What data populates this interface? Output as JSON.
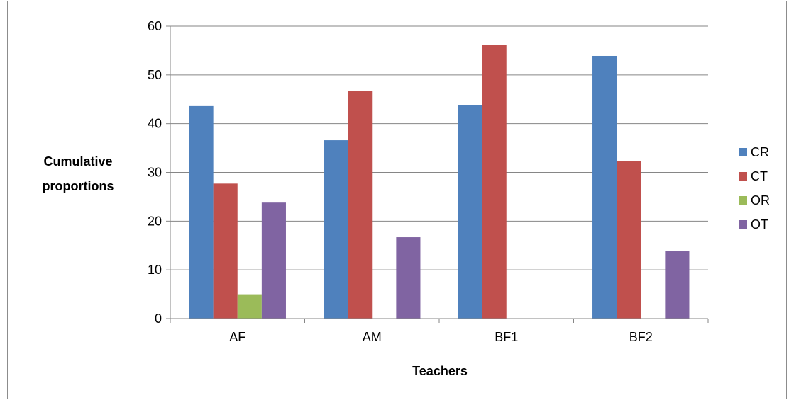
{
  "chart_data": {
    "type": "bar",
    "title": "",
    "xlabel": "Teachers",
    "ylabel_lines": [
      "Cumulative",
      "proportions"
    ],
    "categories": [
      "AF",
      "AM",
      "BF1",
      "BF2"
    ],
    "series": [
      {
        "name": "CR",
        "color": "#4f81bd",
        "values": [
          43.6,
          36.6,
          43.8,
          53.9
        ]
      },
      {
        "name": "CT",
        "color": "#c0504d",
        "values": [
          27.7,
          46.7,
          56.1,
          32.3
        ]
      },
      {
        "name": "OR",
        "color": "#9bbb59",
        "values": [
          5.0,
          0,
          0,
          0
        ]
      },
      {
        "name": "OT",
        "color": "#8064a2",
        "values": [
          23.8,
          16.7,
          0,
          13.9
        ]
      }
    ],
    "ylim": [
      0,
      60
    ],
    "yticks": [
      0,
      10,
      20,
      30,
      40,
      50,
      60
    ],
    "grid": true,
    "legend_position": "right"
  }
}
